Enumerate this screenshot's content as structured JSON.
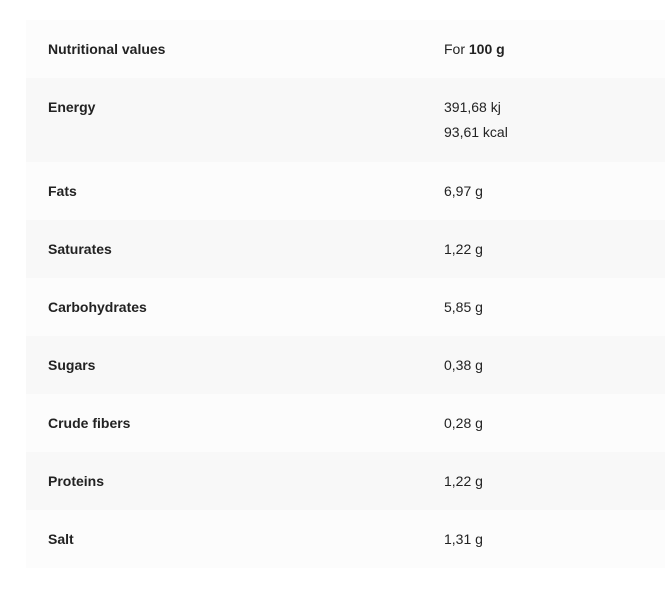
{
  "header": {
    "label": "Nutritional values",
    "for_prefix": "For",
    "for_amount": "100 g"
  },
  "rows": [
    {
      "name": "Energy",
      "value": "391,68 kj",
      "value2": "93,61 kcal"
    },
    {
      "name": "Fats",
      "value": "6,97 g"
    },
    {
      "name": "Saturates",
      "value": "1,22 g"
    },
    {
      "name": "Carbohydrates",
      "value": "5,85 g"
    },
    {
      "name": "Sugars",
      "value": "0,38 g"
    },
    {
      "name": "Crude fibers",
      "value": "0,28 g"
    },
    {
      "name": "Proteins",
      "value": "1,22 g"
    },
    {
      "name": "Salt",
      "value": "1,31 g"
    }
  ]
}
